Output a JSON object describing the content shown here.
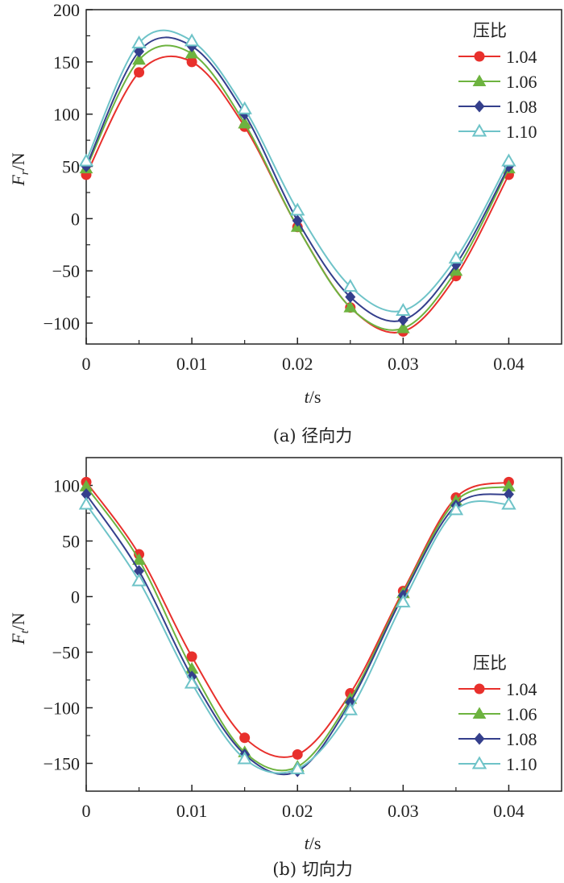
{
  "chart_data": [
    {
      "type": "line",
      "title": "",
      "caption": "(a) 径向力",
      "xlabel_italic": "t",
      "xlabel_unit": "/s",
      "ylabel_main": "F",
      "ylabel_sub": "r",
      "ylabel_unit": "/N",
      "xlim": [
        0,
        0.045
      ],
      "ylim": [
        -120,
        200
      ],
      "x_ticks": [
        0,
        0.01,
        0.02,
        0.03,
        0.04
      ],
      "x_tick_labels": [
        "0",
        "0.01",
        "0.02",
        "0.03",
        "0.04"
      ],
      "x_minor_ticks": [
        0.005,
        0.015,
        0.025,
        0.035
      ],
      "y_ticks": [
        200,
        150,
        100,
        50,
        0,
        -50,
        -100
      ],
      "y_tick_labels": [
        "200",
        "150",
        "100",
        "50",
        "0",
        "−50",
        "−100"
      ],
      "y_minor_ticks": [
        175,
        125,
        75,
        25,
        -25,
        -75
      ],
      "grid": false,
      "legend": {
        "title": "压比",
        "position": "top-right"
      },
      "x": [
        0,
        0.005,
        0.01,
        0.015,
        0.02,
        0.025,
        0.03,
        0.035,
        0.04
      ],
      "series": [
        {
          "name": "1.04",
          "marker": "circle",
          "color": "#e8302c",
          "values": [
            42,
            140,
            150,
            88,
            -8,
            -85,
            -108,
            -55,
            42
          ]
        },
        {
          "name": "1.06",
          "marker": "triangle",
          "color": "#6db33f",
          "values": [
            48,
            152,
            158,
            91,
            -8,
            -85,
            -105,
            -50,
            48
          ]
        },
        {
          "name": "1.08",
          "marker": "diamond",
          "color": "#343f8c",
          "values": [
            50,
            160,
            165,
            100,
            -2,
            -75,
            -97,
            -44,
            50
          ]
        },
        {
          "name": "1.10",
          "marker": "triangle-open",
          "color": "#6ec3c8",
          "values": [
            55,
            168,
            170,
            105,
            8,
            -65,
            -88,
            -38,
            55
          ]
        }
      ]
    },
    {
      "type": "line",
      "title": "",
      "caption": "(b) 切向力",
      "xlabel_italic": "t",
      "xlabel_unit": "/s",
      "ylabel_main": "F",
      "ylabel_sub": "t",
      "ylabel_unit": "/N",
      "xlim": [
        0,
        0.045
      ],
      "ylim": [
        -175,
        125
      ],
      "x_ticks": [
        0,
        0.01,
        0.02,
        0.03,
        0.04
      ],
      "x_tick_labels": [
        "0",
        "0.01",
        "0.02",
        "0.03",
        "0.04"
      ],
      "x_minor_ticks": [
        0.005,
        0.015,
        0.025,
        0.035
      ],
      "y_ticks": [
        100,
        50,
        0,
        -50,
        -100,
        -150
      ],
      "y_tick_labels": [
        "100",
        "50",
        "0",
        "−50",
        "−100",
        "−150"
      ],
      "y_minor_ticks": [
        75,
        25,
        -25,
        -75,
        -125
      ],
      "grid": false,
      "legend": {
        "title": "压比",
        "position": "bottom-right"
      },
      "x": [
        0,
        0.005,
        0.01,
        0.015,
        0.02,
        0.025,
        0.03,
        0.035,
        0.04
      ],
      "series": [
        {
          "name": "1.04",
          "marker": "circle",
          "color": "#e8302c",
          "values": [
            103,
            38,
            -54,
            -127,
            -142,
            -87,
            5,
            89,
            103
          ]
        },
        {
          "name": "1.06",
          "marker": "triangle",
          "color": "#6db33f",
          "values": [
            99,
            33,
            -65,
            -140,
            -153,
            -92,
            3,
            86,
            99
          ]
        },
        {
          "name": "1.08",
          "marker": "diamond",
          "color": "#343f8c",
          "values": [
            92,
            23,
            -72,
            -142,
            -157,
            -95,
            1,
            82,
            92
          ]
        },
        {
          "name": "1.10",
          "marker": "triangle-open",
          "color": "#6ec3c8",
          "values": [
            83,
            14,
            -78,
            -146,
            -155,
            -102,
            -5,
            78,
            83
          ]
        }
      ]
    }
  ]
}
